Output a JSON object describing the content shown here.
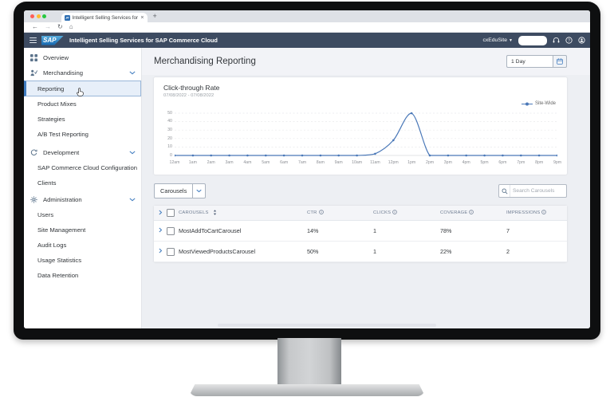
{
  "browser": {
    "tab_title": "Intelligent Selling Services for",
    "close_label": "×",
    "new_tab_label": "+",
    "nav_icons": [
      "back",
      "forward",
      "reload",
      "home"
    ]
  },
  "app_header": {
    "logo_text": "SAP",
    "product_title": "Intelligent Selling Services for SAP Commerce Cloud",
    "site_name": "cxEduSite"
  },
  "sidebar": {
    "items": [
      {
        "label": "Overview",
        "icon": "overview",
        "level": 1
      },
      {
        "label": "Merchandising",
        "icon": "merchandising",
        "level": 1,
        "expandable": true,
        "expanded": true
      },
      {
        "label": "Reporting",
        "level": 2,
        "selected": true
      },
      {
        "label": "Product Mixes",
        "level": 2
      },
      {
        "label": "Strategies",
        "level": 2
      },
      {
        "label": "A/B Test Reporting",
        "level": 2
      },
      {
        "label": "Development",
        "icon": "development",
        "level": 1,
        "expandable": true,
        "expanded": true,
        "group_gap": 4
      },
      {
        "label": "SAP Commerce Cloud Configuration",
        "level": 2
      },
      {
        "label": "Clients",
        "level": 2
      },
      {
        "label": "Administration",
        "icon": "administration",
        "level": 1,
        "expandable": true,
        "expanded": true,
        "group_gap": 2
      },
      {
        "label": "Users",
        "level": 2
      },
      {
        "label": "Site Management",
        "level": 2
      },
      {
        "label": "Audit Logs",
        "level": 2
      },
      {
        "label": "Usage Statistics",
        "level": 2
      },
      {
        "label": "Data Retention",
        "level": 2
      }
    ]
  },
  "page": {
    "title": "Merchandising Reporting",
    "date_range_value": "1 Day"
  },
  "chart_data": {
    "type": "line",
    "title": "Click-through Rate",
    "subtitle": "07/08/2022 - 07/08/2022",
    "legend": [
      {
        "name": "Site-Wide",
        "color": "#4a78b8"
      }
    ],
    "legend_position": "top-right",
    "grid": "dashed-horizontal",
    "ylim": [
      0,
      50
    ],
    "yticks": [
      0,
      10,
      20,
      30,
      40,
      50
    ],
    "x": [
      "12am",
      "1am",
      "2am",
      "3am",
      "4am",
      "5am",
      "6am",
      "7am",
      "8am",
      "9am",
      "10am",
      "11am",
      "12pm",
      "1pm",
      "2pm",
      "3pm",
      "4pm",
      "5pm",
      "6pm",
      "7pm",
      "8pm",
      "9pm"
    ],
    "series": [
      {
        "name": "Site-Wide",
        "values": [
          0,
          0,
          0,
          0,
          0,
          0,
          0,
          0,
          0,
          0,
          0,
          2,
          18,
          50,
          0,
          0,
          0,
          0,
          0,
          0,
          0,
          0
        ]
      }
    ]
  },
  "toolbar": {
    "entity_button_label": "Carousels",
    "search_placeholder": "Search Carousels"
  },
  "table": {
    "columns": [
      {
        "key": "name",
        "label": "CAROUSELS",
        "sort": true
      },
      {
        "key": "ctr",
        "label": "CTR",
        "info": true
      },
      {
        "key": "clicks",
        "label": "CLICKS",
        "info": true
      },
      {
        "key": "coverage",
        "label": "COVERAGE",
        "info": true
      },
      {
        "key": "impressions",
        "label": "IMPRESSIONS",
        "info": true
      }
    ],
    "rows": [
      {
        "name": "MostAddToCartCarousel",
        "ctr": "14%",
        "clicks": "1",
        "coverage": "78%",
        "impressions": "7"
      },
      {
        "name": "MostViewedProductsCarousel",
        "ctr": "50%",
        "clicks": "1",
        "coverage": "22%",
        "impressions": "2"
      }
    ]
  },
  "colors": {
    "accent_blue": "#0a6ed1",
    "chart_line": "#4a78b8",
    "app_header_bar": "#3d4b61",
    "selected_item_bg": "#e7eff9",
    "main_background": "#edeff3"
  }
}
